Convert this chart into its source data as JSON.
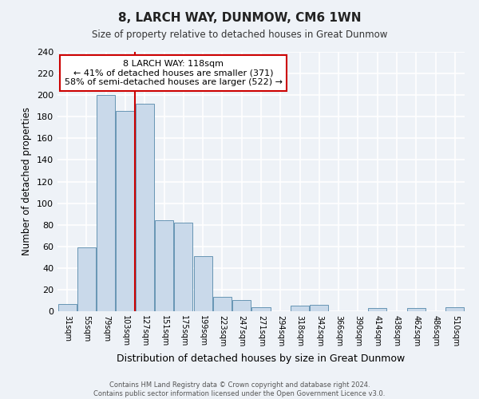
{
  "title": "8, LARCH WAY, DUNMOW, CM6 1WN",
  "subtitle": "Size of property relative to detached houses in Great Dunmow",
  "xlabel": "Distribution of detached houses by size in Great Dunmow",
  "ylabel": "Number of detached properties",
  "bar_labels": [
    "31sqm",
    "55sqm",
    "79sqm",
    "103sqm",
    "127sqm",
    "151sqm",
    "175sqm",
    "199sqm",
    "223sqm",
    "247sqm",
    "271sqm",
    "294sqm",
    "318sqm",
    "342sqm",
    "366sqm",
    "390sqm",
    "414sqm",
    "438sqm",
    "462sqm",
    "486sqm",
    "510sqm"
  ],
  "bar_heights": [
    7,
    59,
    200,
    185,
    192,
    84,
    82,
    51,
    13,
    10,
    4,
    0,
    5,
    6,
    0,
    0,
    3,
    0,
    3,
    0,
    4
  ],
  "bar_color": "#c9d9ea",
  "bar_edge_color": "#5588aa",
  "ylim": [
    0,
    240
  ],
  "yticks": [
    0,
    20,
    40,
    60,
    80,
    100,
    120,
    140,
    160,
    180,
    200,
    220,
    240
  ],
  "vline_index": 3.5,
  "vline_color": "#cc0000",
  "annotation_title": "8 LARCH WAY: 118sqm",
  "annotation_line1": "← 41% of detached houses are smaller (371)",
  "annotation_line2": "58% of semi-detached houses are larger (522) →",
  "annotation_box_color": "#cc0000",
  "footer_line1": "Contains HM Land Registry data © Crown copyright and database right 2024.",
  "footer_line2": "Contains public sector information licensed under the Open Government Licence v3.0.",
  "background_color": "#eef2f7",
  "grid_color": "#ffffff"
}
